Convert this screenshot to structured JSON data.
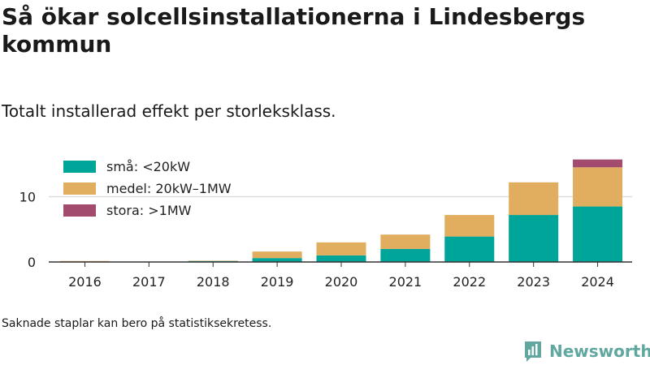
{
  "header": {
    "title": "Så ökar solcellsinstallationerna i Lindesbergs kommun",
    "subtitle": "Totalt installerad effekt per storleksklass."
  },
  "footer": {
    "note": "Saknade staplar kan bero på statistiksekretess.",
    "brand": "Newsworthy",
    "brand_icon": "newsworthy-logo-icon"
  },
  "colors": {
    "small": "#00a59a",
    "medium": "#e0ae5e",
    "large": "#a34a6f",
    "brand": "#5fa79f"
  },
  "chart_data": {
    "type": "bar",
    "stacked": true,
    "categories": [
      "2016",
      "2017",
      "2018",
      "2019",
      "2020",
      "2021",
      "2022",
      "2023",
      "2024"
    ],
    "series": [
      {
        "name": "små: <20kW",
        "color": "#00a59a",
        "values": [
          0.05,
          0.0,
          0.15,
          0.6,
          1.0,
          2.0,
          3.9,
          7.2,
          8.5
        ]
      },
      {
        "name": "medel: 20kW–1MW",
        "color": "#e0ae5e",
        "values": [
          0.1,
          0.0,
          0.05,
          1.0,
          2.0,
          2.2,
          3.3,
          5.0,
          6.0
        ]
      },
      {
        "name": "stora: >1MW",
        "color": "#a34a6f",
        "values": [
          0.0,
          0.0,
          0.0,
          0.0,
          0.0,
          0.0,
          0.0,
          0.0,
          1.2
        ]
      }
    ],
    "yticks": [
      "0",
      "10"
    ],
    "ylim": [
      0,
      16
    ],
    "grid": true,
    "legend_position": "top-left"
  }
}
